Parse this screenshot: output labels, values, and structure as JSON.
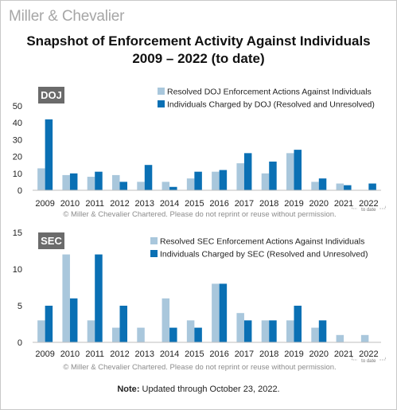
{
  "brand": "Miller & Chevalier",
  "title": {
    "line1": "Snapshot of Enforcement Activity Against Individuals",
    "line2": "2009 – 2022 (to date)"
  },
  "colors": {
    "light": "#a9c7dc",
    "dark": "#0a70b4",
    "badge": "#6b6b6b",
    "axis_text": "#222222",
    "copyright": "#8c8c8c"
  },
  "footnote": {
    "label": "Note",
    "text": "Updated through October 23, 2022."
  },
  "chart_data": [
    {
      "type": "bar",
      "badge": "DOJ",
      "categories": [
        "2009",
        "2010",
        "2011",
        "2012",
        "2013",
        "2014",
        "2015",
        "2016",
        "2017",
        "2018",
        "2019",
        "2020",
        "2021",
        "2022"
      ],
      "category_note": {
        "index": 13,
        "text": "to date"
      },
      "ylim": [
        0,
        50
      ],
      "yticks": [
        0,
        10,
        20,
        30,
        40,
        50
      ],
      "legend_position": "top-right",
      "series": [
        {
          "name": "Resolved DOJ Enforcement Actions Against Individuals",
          "color": "#a9c7dc",
          "values": [
            13,
            9,
            8,
            9,
            5,
            5,
            7,
            11,
            16,
            10,
            22,
            5,
            4,
            0
          ]
        },
        {
          "name": "Individuals Charged by DOJ (Resolved and Unresolved)",
          "color": "#0a70b4",
          "values": [
            42,
            10,
            11,
            5,
            15,
            2,
            11,
            12,
            22,
            17,
            24,
            7,
            3,
            4
          ]
        }
      ],
      "copyright": "© Miller & Chevalier Chartered. Please do not reprint or reuse without permission."
    },
    {
      "type": "bar",
      "badge": "SEC",
      "categories": [
        "2009",
        "2010",
        "2011",
        "2012",
        "2013",
        "2014",
        "2015",
        "2016",
        "2017",
        "2018",
        "2019",
        "2020",
        "2021",
        "2022"
      ],
      "category_note": {
        "index": 13,
        "text": "to date"
      },
      "ylim": [
        0,
        15
      ],
      "yticks": [
        0,
        5,
        10,
        15
      ],
      "legend_position": "top-right",
      "series": [
        {
          "name": "Resolved SEC Enforcement Actions Against Individuals",
          "color": "#a9c7dc",
          "values": [
            3,
            12,
            3,
            2,
            2,
            6,
            3,
            8,
            4,
            3,
            3,
            2,
            1,
            1
          ]
        },
        {
          "name": "Individuals Charged by SEC (Resolved and Unresolved)",
          "color": "#0a70b4",
          "values": [
            5,
            6,
            12,
            5,
            0,
            2,
            2,
            8,
            3,
            3,
            5,
            3,
            0,
            0
          ]
        }
      ],
      "copyright": "© Miller & Chevalier Chartered. Please do not reprint or reuse without permission."
    }
  ]
}
